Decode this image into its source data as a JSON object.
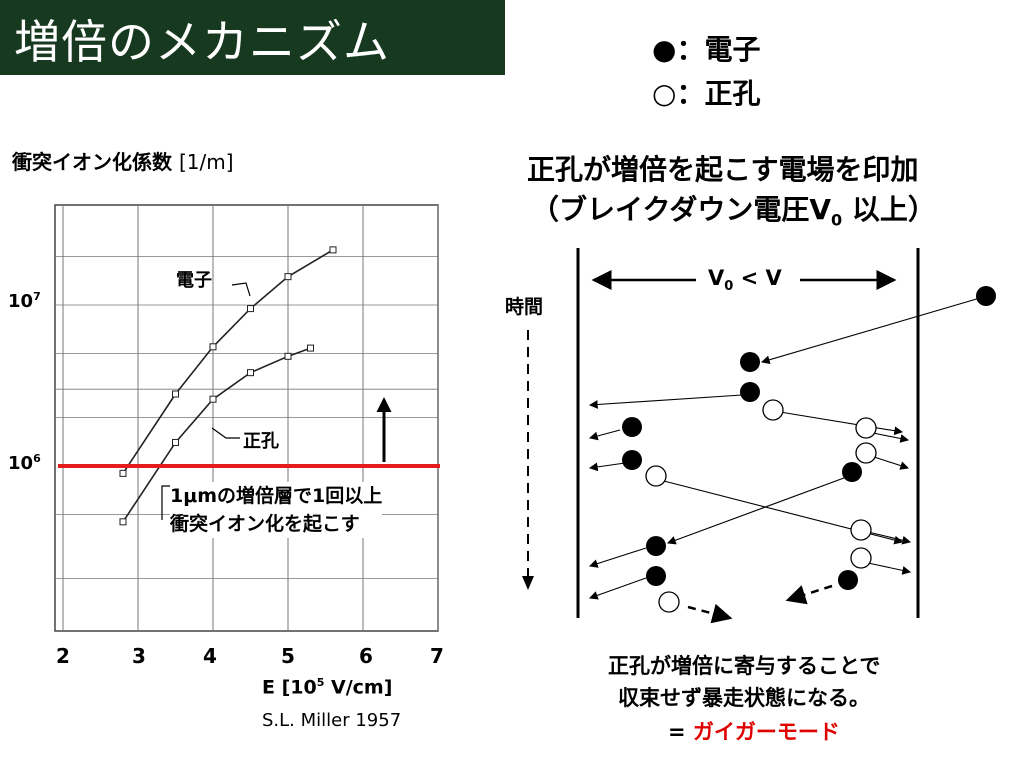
{
  "title": "増倍のメカニズム",
  "legend": {
    "electron_mark": "●",
    "electron_label": "：電子",
    "hole_mark": "○",
    "hole_label": "：正孔"
  },
  "chart": {
    "ylabel": "衝突イオン化係数",
    "ylabel_unit": "[1/m]",
    "ytick_1e7_base": "10",
    "ytick_1e7_exp": "7",
    "ytick_1e6_base": "10",
    "ytick_1e6_exp": "6",
    "xticks": [
      "2",
      "3",
      "4",
      "5",
      "6",
      "7"
    ],
    "xlabel_prefix": "E [10",
    "xlabel_exp": "5",
    "xlabel_suffix": " V/cm]",
    "curve_label_electron": "電子",
    "curve_label_hole": "正孔",
    "annotation_line1": "1μmの増倍層で1回以上",
    "annotation_line2": "衝突イオン化を起こす",
    "credit": "S.L. Miller 1957"
  },
  "chart_data": {
    "type": "line",
    "xlabel": "E [10^5 V/cm]",
    "ylabel": "衝突イオン化係数 [1/m]",
    "xlim": [
      2,
      7
    ],
    "ylim": [
      100000,
      30000000
    ],
    "yscale": "log",
    "threshold_y": 1000000,
    "series": [
      {
        "name": "電子",
        "x": [
          2.8,
          3.5,
          4.0,
          4.5,
          5.0,
          5.6
        ],
        "y": [
          900000,
          2800000,
          5500000,
          9500000,
          15000000,
          22000000
        ]
      },
      {
        "name": "正孔",
        "x": [
          2.8,
          3.5,
          4.0,
          4.5,
          5.0,
          5.3
        ],
        "y": [
          450000,
          1400000,
          2600000,
          3800000,
          4800000,
          5400000
        ]
      }
    ]
  },
  "diagram": {
    "heading_line1": "正孔が増倍を起こす電場を印加",
    "heading_line2_prefix": "（ブレイクダウン電圧V",
    "heading_line2_sub": "0",
    "heading_line2_suffix": " 以上）",
    "field_label_prefix": "V",
    "field_label_sub": "0",
    "field_label_suffix": " < V",
    "time_label": "時間",
    "caption_line1": "正孔が増倍に寄与することで",
    "caption_line2": "収束せず暴走状態になる。",
    "caption_line3_prefix": "= ",
    "caption_line3_highlight": "ガイガーモード"
  }
}
